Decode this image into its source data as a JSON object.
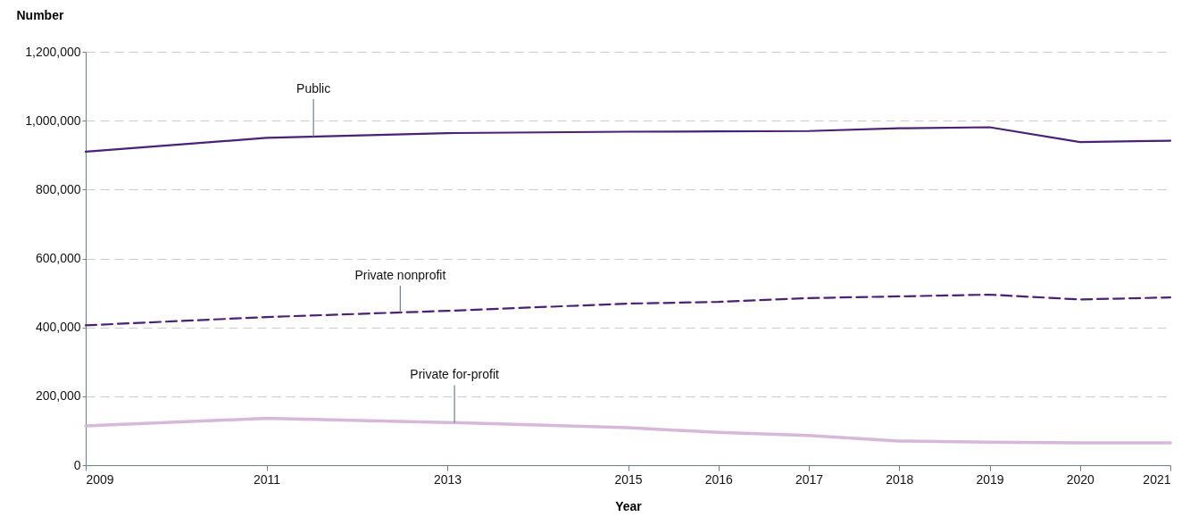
{
  "chart_data": {
    "type": "line",
    "xlabel": "Year",
    "ylabel": "Number",
    "x": [
      2009,
      2011,
      2013,
      2015,
      2016,
      2017,
      2018,
      2019,
      2020,
      2021
    ],
    "xlim": [
      2009,
      2021
    ],
    "xticks": [
      2009,
      2011,
      2013,
      2015,
      2016,
      2017,
      2018,
      2019,
      2020,
      2021
    ],
    "ylim": [
      0,
      1200000
    ],
    "yticks": [
      0,
      {
        "value": 200000,
        "label": "200,000"
      },
      {
        "value": 400000,
        "label": "400,000"
      },
      {
        "value": 600000,
        "label": "600,000"
      },
      {
        "value": 800000,
        "label": "800,000"
      },
      {
        "value": 1000000,
        "label": "1,000,000"
      },
      {
        "value": 1200000,
        "label": "1,200,000"
      }
    ],
    "grid": "y",
    "legend": false,
    "series": [
      {
        "name": "Public",
        "color": "#4b2177",
        "line_style": "solid",
        "values": [
          910000,
          950000,
          964000,
          968000,
          969000,
          970000,
          978000,
          981000,
          938000,
          942000
        ]
      },
      {
        "name": "Private nonprofit",
        "color": "#4b2177",
        "line_style": "dashed",
        "values": [
          406000,
          430000,
          448000,
          469000,
          474000,
          485000,
          490000,
          495000,
          481000,
          487000
        ]
      },
      {
        "name": "Private for-profit",
        "color": "#d7b8da",
        "line_style": "solid",
        "values": [
          114000,
          136000,
          124000,
          109000,
          95000,
          86000,
          70000,
          67000,
          65000,
          65000
        ]
      }
    ]
  }
}
